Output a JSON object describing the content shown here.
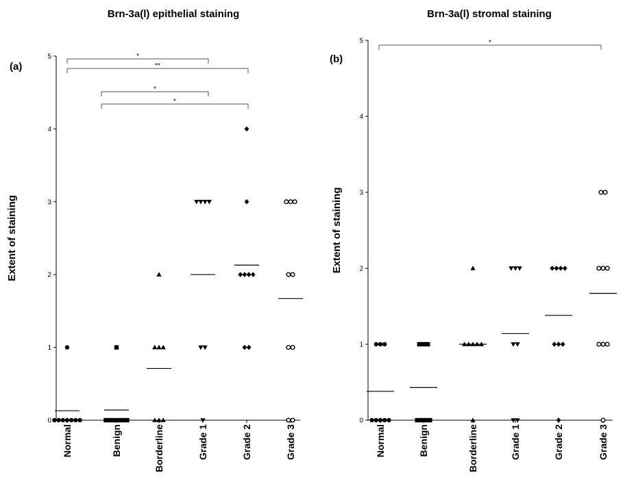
{
  "chart_data": [
    {
      "type": "scatter",
      "panel": "(a)",
      "title": "Brn-3a(l) epithelial staining",
      "ylabel": "Extent of staining",
      "xlabel": "",
      "ylim": [
        0,
        5
      ],
      "yticks": [
        "0",
        "1",
        "2",
        "3",
        "4",
        "5"
      ],
      "categories": [
        "Normal",
        "Benign",
        "Borderline",
        "Grade 1",
        "Grade 2",
        "Grade 3"
      ],
      "markers": [
        "circle",
        "square",
        "triangle-up",
        "triangle-down",
        "diamond",
        "open-circle"
      ],
      "points": [
        [
          1,
          0,
          0,
          0,
          0,
          0,
          0,
          0
        ],
        [
          1,
          0,
          0,
          0,
          0,
          0,
          0
        ],
        [
          2,
          1,
          1,
          1,
          0,
          0,
          0
        ],
        [
          3,
          3,
          3,
          3,
          1,
          1,
          0
        ],
        [
          4,
          3,
          2,
          2,
          2,
          2,
          1,
          1
        ],
        [
          3,
          3,
          3,
          2,
          2,
          1,
          1,
          0,
          0
        ]
      ],
      "means": [
        0.13,
        0.14,
        0.71,
        2.0,
        2.13,
        1.67
      ],
      "significance": [
        {
          "from": "Normal",
          "to": "Grade 1",
          "label": "*"
        },
        {
          "from": "Normal",
          "to": "Grade 2",
          "label": "**"
        },
        {
          "from": "Benign",
          "to": "Grade 1",
          "label": "*"
        },
        {
          "from": "Benign",
          "to": "Grade 2",
          "label": "*"
        }
      ]
    },
    {
      "type": "scatter",
      "panel": "(b)",
      "title": "Brn-3a(l) stromal staining",
      "ylabel": "Extent of staining",
      "xlabel": "",
      "ylim": [
        0,
        5
      ],
      "yticks": [
        "0",
        "1",
        "2",
        "3",
        "4",
        "5"
      ],
      "categories": [
        "Normal",
        "Benign",
        "Borderline",
        "Grade 1",
        "Grade 2",
        "Grade 3"
      ],
      "markers": [
        "circle",
        "square",
        "triangle-up",
        "triangle-down",
        "diamond",
        "open-circle"
      ],
      "points": [
        [
          1,
          1,
          1,
          0,
          0,
          0,
          0,
          0
        ],
        [
          1,
          1,
          1,
          0,
          0,
          0,
          0
        ],
        [
          2,
          1,
          1,
          1,
          1,
          1,
          0
        ],
        [
          2,
          2,
          2,
          1,
          1,
          0,
          0
        ],
        [
          2,
          2,
          2,
          2,
          1,
          1,
          1,
          0
        ],
        [
          3,
          3,
          2,
          2,
          2,
          1,
          1,
          1,
          0
        ]
      ],
      "means": [
        0.38,
        0.43,
        1.0,
        1.14,
        1.38,
        1.67
      ],
      "significance": [
        {
          "from": "Normal",
          "to": "Grade 3",
          "label": "*"
        }
      ]
    }
  ]
}
